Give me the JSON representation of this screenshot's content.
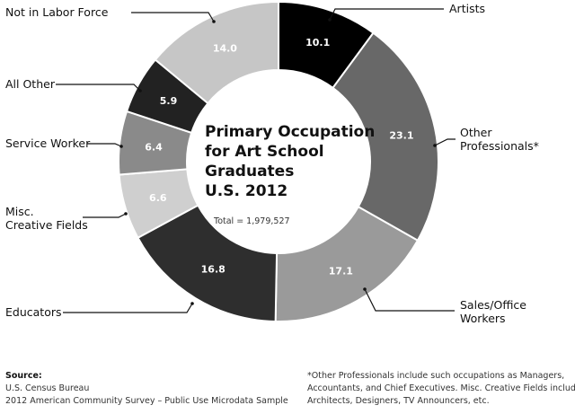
{
  "chart_data": {
    "type": "donut",
    "title": "Primary Occupation\nfor Art School\nGraduates\nU.S. 2012",
    "total_text": "Total = 1,979,527",
    "categories": [
      "Artists",
      "Other\nProfessionals*",
      "Sales/Office\nWorkers",
      "Educators",
      "Misc.\nCreative Fields",
      "Service Worker",
      "All Other",
      "Not in Labor Force"
    ],
    "values": [
      10.1,
      23.1,
      17.1,
      16.8,
      6.6,
      6.4,
      5.9,
      14.0
    ],
    "value_labels": [
      "10.1",
      "23.1",
      "17.1",
      "16.8",
      "6.6",
      "6.4",
      "5.9",
      "14.0"
    ],
    "colors": [
      "#000000",
      "#686868",
      "#9a9a9a",
      "#2e2e2e",
      "#cfcfcf",
      "#8a8a8a",
      "#222222",
      "#c6c6c6"
    ],
    "source_heading": "Source:",
    "source_lines": [
      "U.S. Census Bureau",
      "2012 American Community Survey – Public Use Microdata Sample"
    ],
    "footnote": "*Other Professionals include such occupations as Managers,\nAccountants, and Chief Executives. Misc. Creative Fields include\nArchitects, Designers, TV Announcers, etc."
  }
}
